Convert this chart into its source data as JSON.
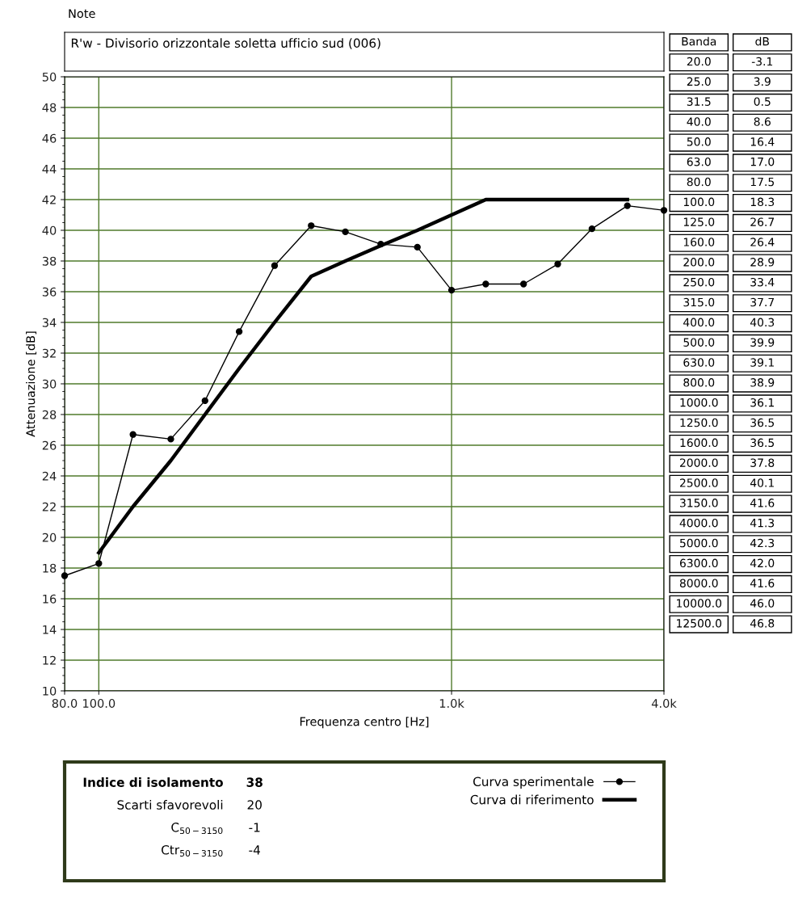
{
  "chart_data": [
    {
      "type": "line",
      "subtitle": "Note",
      "title": "R'w - Divisorio orizzontale soletta ufficio sud (006)",
      "xlabel": "Frequenza centro [Hz]",
      "ylabel": "Attenuazione [dB]",
      "log": "x",
      "xlim": [
        80,
        4000
      ],
      "xticks": [
        {
          "value": 80,
          "label": "80.0"
        },
        {
          "value": 100,
          "label": "100.0"
        },
        {
          "value": 1000,
          "label": "1.0k"
        },
        {
          "value": 4000,
          "label": "4.0k"
        }
      ],
      "ylim": [
        10,
        50
      ],
      "yticks": [
        10,
        12,
        14,
        16,
        18,
        20,
        22,
        24,
        26,
        28,
        30,
        32,
        34,
        36,
        38,
        40,
        42,
        44,
        46,
        48,
        50
      ],
      "grid": true,
      "legend": "bottom",
      "series": [
        {
          "name": "Curva sperimentale",
          "color": "#000000",
          "marker": "circle",
          "x": [
            80,
            100,
            125,
            160,
            200,
            250,
            315,
            400,
            500,
            630,
            800,
            1000,
            1250,
            1600,
            2000,
            2500,
            3150,
            4000
          ],
          "values": [
            17.5,
            18.3,
            26.7,
            26.4,
            28.9,
            33.4,
            37.7,
            40.3,
            39.9,
            39.1,
            38.9,
            36.1,
            36.5,
            36.5,
            37.8,
            40.1,
            41.6,
            41.3
          ]
        },
        {
          "name": "Curva di riferimento",
          "color": "#000000",
          "marker": "none",
          "x": [
            100,
            125,
            160,
            200,
            250,
            315,
            400,
            500,
            630,
            800,
            1000,
            1250,
            1600,
            2000,
            2500,
            3150
          ],
          "values": [
            19,
            22,
            25,
            28,
            31,
            34,
            37,
            38,
            39,
            40,
            41,
            42,
            42,
            42,
            42,
            42
          ]
        }
      ]
    },
    {
      "type": "other",
      "annotations": [
        "Banda",
        "dB",
        "20.0",
        "-3.1",
        "25.0",
        "3.9",
        "31.5",
        "0.5",
        "40.0",
        "8.6",
        "50.0",
        "16.4",
        "63.0",
        "17.0",
        "80.0",
        "17.5",
        "100.0",
        "18.3",
        "125.0",
        "26.7",
        "160.0",
        "26.4",
        "200.0",
        "28.9",
        "250.0",
        "33.4",
        "315.0",
        "37.7",
        "400.0",
        "40.3",
        "500.0",
        "39.9",
        "630.0",
        "39.1",
        "800.0",
        "38.9",
        "1000.0",
        "36.1",
        "1250.0",
        "36.5",
        "1600.0",
        "36.5",
        "2000.0",
        "37.8",
        "2500.0",
        "40.1",
        "3150.0",
        "41.6",
        "4000.0",
        "41.3",
        "5000.0",
        "42.3",
        "6300.0",
        "42.0",
        "8000.0",
        "41.6",
        "10000.0",
        "46.0",
        "12500.0",
        "46.8"
      ]
    },
    {
      "type": "other",
      "annotations": [
        "Indice di isolamento",
        "38",
        "Scarti sfavorevoli",
        "20",
        "C$_{50−3150}$",
        "-1",
        "Ctr$_{50−3150}$",
        "-4"
      ]
    }
  ]
}
